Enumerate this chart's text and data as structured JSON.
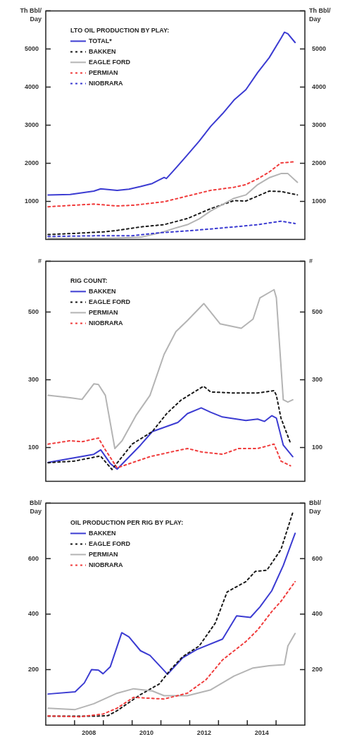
{
  "chart_data": [
    {
      "type": "line",
      "legend_title": "LTO OIL PRODUCTION BY PLAY:",
      "legend": "top left",
      "ylabel": "Th Bbl/\nDay",
      "y2label": "Th Bbl/\nDay",
      "xlim": [
        2007,
        2016
      ],
      "ylim": [
        0,
        6000
      ],
      "yticks": [
        {
          "value": 1000,
          "label": "1000"
        },
        2000,
        3000,
        4000,
        5000,
        {
          "value": 6000,
          "label": null
        }
      ],
      "y2lim": [
        0,
        6000
      ],
      "y2ticks": [
        {
          "value": 1000,
          "label": "1000"
        },
        2000,
        3000,
        4000,
        5000,
        {
          "value": 6000,
          "label": null
        }
      ],
      "tick_labels": "y",
      "series": [
        {
          "name": "TOTAL*",
          "color": "#3c3cd2",
          "line_style": "solid",
          "x": [
            2007.08,
            2007.85,
            2008.67,
            2008.91,
            2009.48,
            2009.89,
            2010.29,
            2010.7,
            2011.11,
            2011.19,
            2011.43,
            2011.92,
            2012.33,
            2012.73,
            2013.14,
            2013.54,
            2013.95,
            2014.36,
            2014.76,
            2015.17,
            2015.29,
            2015.41,
            2015.66
          ],
          "values": [
            1170,
            1180,
            1270,
            1330,
            1290,
            1320,
            1390,
            1470,
            1630,
            1600,
            1800,
            2220,
            2580,
            2970,
            3300,
            3660,
            3930,
            4380,
            4770,
            5280,
            5440,
            5400,
            5170
          ]
        },
        {
          "name": "BAKKEN",
          "color": "#1a1a1a",
          "line_style": "dashed",
          "x": [
            2007.08,
            2008,
            2009,
            2009.5,
            2010.29,
            2011.11,
            2011.92,
            2012.73,
            2013.54,
            2013.95,
            2014.36,
            2014.76,
            2015.17,
            2015.74
          ],
          "values": [
            130,
            160,
            200,
            240,
            330,
            390,
            550,
            810,
            1020,
            1010,
            1140,
            1270,
            1260,
            1170
          ]
        },
        {
          "name": "EAGLE FORD",
          "color": "#b4b4b4",
          "line_style": "solid",
          "x": [
            2007.08,
            2008,
            2009,
            2009.5,
            2010.3,
            2011,
            2011.5,
            2011.92,
            2012.33,
            2012.73,
            2013.54,
            2013.95,
            2014.36,
            2014.76,
            2015.17,
            2015.41,
            2015.74
          ],
          "values": [
            30,
            30,
            30,
            40,
            60,
            180,
            300,
            390,
            540,
            750,
            1080,
            1170,
            1440,
            1620,
            1730,
            1730,
            1500
          ]
        },
        {
          "name": "PERMIAN",
          "color": "#f03c3c",
          "line_style": "dashed",
          "x": [
            2007.08,
            2008.67,
            2009.48,
            2010.05,
            2011.11,
            2011.92,
            2012.73,
            2013.54,
            2013.95,
            2014.36,
            2014.76,
            2015.17,
            2015.66
          ],
          "values": [
            860,
            930,
            880,
            900,
            990,
            1140,
            1290,
            1370,
            1440,
            1590,
            1770,
            2010,
            2040
          ]
        },
        {
          "name": "NIOBRARA",
          "color": "#3c3cd2",
          "line_style": "dashed",
          "x": [
            2007.08,
            2008,
            2009,
            2010,
            2011,
            2012,
            2013.54,
            2014.36,
            2015.17,
            2015.66
          ],
          "values": [
            80,
            90,
            100,
            100,
            180,
            230,
            330,
            390,
            480,
            420
          ]
        }
      ]
    },
    {
      "type": "line",
      "legend_title": "RIG COUNT:",
      "legend": "top left",
      "ylabel": "#",
      "y2label": "#",
      "xlim": [
        2007,
        2016
      ],
      "ylim": [
        0,
        650
      ],
      "yticks": [
        100,
        300,
        500,
        {
          "value": 650,
          "label": null
        }
      ],
      "y2lim": [
        0,
        650
      ],
      "y2ticks": [
        100,
        300,
        500,
        {
          "value": 650,
          "label": null
        }
      ],
      "tick_labels": "y",
      "series": [
        {
          "name": "BAKKEN",
          "color": "#3c3cd2",
          "line_style": "solid",
          "x": [
            2007.08,
            2008.67,
            2008.91,
            2009.24,
            2009.48,
            2010.29,
            2010.7,
            2011.59,
            2011.92,
            2012.4,
            2012.73,
            2013.14,
            2013.95,
            2014.36,
            2014.6,
            2014.85,
            2015.01,
            2015.25,
            2015.58
          ],
          "values": [
            56,
            80,
            93,
            53,
            36,
            107,
            147,
            174,
            200,
            217,
            204,
            190,
            180,
            184,
            177,
            194,
            187,
            107,
            73
          ]
        },
        {
          "name": "EAGLE FORD",
          "color": "#1a1a1a",
          "line_style": "dashed",
          "x": [
            2007.08,
            2008,
            2008.9,
            2009.3,
            2010,
            2010.7,
            2011.2,
            2011.7,
            2012.48,
            2012.73,
            2013.54,
            2014.36,
            2014.93,
            2015.01,
            2015.17,
            2015.5
          ],
          "values": [
            55,
            60,
            75,
            35,
            110,
            147,
            200,
            240,
            281,
            264,
            261,
            261,
            268,
            254,
            187,
            113
          ]
        },
        {
          "name": "PERMIAN",
          "color": "#b4b4b4",
          "line_style": "solid",
          "x": [
            2007.08,
            2007.85,
            2008.26,
            2008.67,
            2008.83,
            2009.07,
            2009.4,
            2009.65,
            2010.13,
            2010.62,
            2011.11,
            2011.52,
            2011.92,
            2012.49,
            2013.06,
            2013.79,
            2014.2,
            2014.44,
            2014.93,
            2015.01,
            2015.25,
            2015.41,
            2015.58
          ],
          "values": [
            254,
            247,
            242,
            288,
            286,
            254,
            97,
            120,
            194,
            254,
            375,
            442,
            475,
            525,
            465,
            452,
            479,
            542,
            566,
            542,
            241,
            234,
            241
          ]
        },
        {
          "name": "NIOBRARA",
          "color": "#f03c3c",
          "line_style": "dashed",
          "x": [
            2007.08,
            2007.85,
            2008.26,
            2008.83,
            2009.07,
            2009.48,
            2010.62,
            2011.52,
            2011.92,
            2012.41,
            2013.14,
            2013.7,
            2014.36,
            2014.93,
            2015.17,
            2015.5
          ],
          "values": [
            110,
            120,
            117,
            128,
            93,
            40,
            73,
            90,
            97,
            87,
            80,
            97,
            97,
            110,
            60,
            46
          ]
        }
      ]
    },
    {
      "type": "line",
      "legend_title": "OIL PRODUCTION PER RIG BY PLAY:",
      "legend": "top left",
      "ylabel": "Bbl/\nDay",
      "y2label": "Bbl/\nDay",
      "xlim": [
        2007,
        2016
      ],
      "xticks": [
        {
          "value": 2008,
          "label": null
        },
        {
          "value": 2008.5,
          "label": "2008"
        },
        {
          "value": 2009,
          "label": null
        },
        {
          "value": 2010,
          "label": null
        },
        {
          "value": 2010.5,
          "label": "2010"
        },
        {
          "value": 2011,
          "label": null
        },
        {
          "value": 2012,
          "label": null
        },
        {
          "value": 2012.5,
          "label": "2012"
        },
        {
          "value": 2013,
          "label": null
        },
        {
          "value": 2014,
          "label": null
        },
        {
          "value": 2014.5,
          "label": "2014"
        },
        {
          "value": 2015,
          "label": null
        }
      ],
      "ylim": [
        0,
        800
      ],
      "yticks": [
        200,
        400,
        600,
        {
          "value": 800,
          "label": null
        }
      ],
      "y2lim": [
        0,
        800
      ],
      "y2ticks": [
        200,
        400,
        600,
        {
          "value": 800,
          "label": null
        }
      ],
      "series": [
        {
          "name": "BAKKEN",
          "color": "#3c3cd2",
          "line_style": "solid",
          "x": [
            2007.08,
            2008.02,
            2008.34,
            2008.59,
            2008.83,
            2008.99,
            2009.24,
            2009.64,
            2009.89,
            2010.29,
            2010.62,
            2011.23,
            2011.76,
            2012.24,
            2013.14,
            2013.63,
            2014.11,
            2014.44,
            2014.85,
            2015.25,
            2015.66
          ],
          "values": [
            112,
            120,
            152,
            200,
            198,
            185,
            210,
            333,
            318,
            268,
            251,
            183,
            243,
            272,
            310,
            394,
            388,
            426,
            484,
            575,
            691
          ]
        },
        {
          "name": "EAGLE FORD",
          "color": "#1a1a1a",
          "line_style": "dashed",
          "x": [
            2007.08,
            2008.67,
            2009.16,
            2009.48,
            2010.29,
            2010.94,
            2011.35,
            2011.76,
            2012.33,
            2012.89,
            2013.3,
            2013.95,
            2014.28,
            2014.68,
            2015.17,
            2015.58
          ],
          "values": [
            32,
            32,
            34,
            52,
            110,
            148,
            202,
            247,
            285,
            368,
            480,
            517,
            554,
            558,
            633,
            766
          ]
        },
        {
          "name": "PERMIAN",
          "color": "#b4b4b4",
          "line_style": "solid",
          "x": [
            2007.08,
            2008.02,
            2008.67,
            2009.48,
            2010.05,
            2010.7,
            2011.11,
            2011.92,
            2012.73,
            2013.54,
            2014.2,
            2014.76,
            2015.29,
            2015.41,
            2015.66
          ],
          "values": [
            61,
            56,
            77,
            115,
            131,
            123,
            106,
            106,
            127,
            177,
            206,
            214,
            218,
            285,
            330
          ]
        },
        {
          "name": "NIOBRARA",
          "color": "#f03c3c",
          "line_style": "dashed",
          "x": [
            2007.08,
            2008.18,
            2008.99,
            2009.48,
            2010.05,
            2011.11,
            2011.92,
            2012.57,
            2013.14,
            2013.95,
            2014.36,
            2014.85,
            2015.17,
            2015.66
          ],
          "values": [
            33,
            30,
            40,
            61,
            100,
            94,
            115,
            164,
            235,
            301,
            343,
            409,
            446,
            517
          ]
        }
      ]
    }
  ]
}
